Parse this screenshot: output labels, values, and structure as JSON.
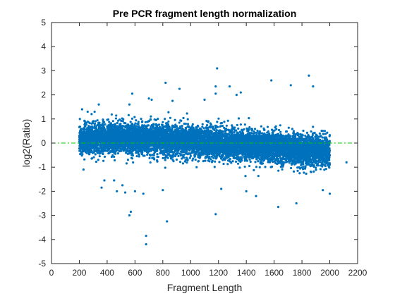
{
  "chart_data": {
    "type": "scatter",
    "title": "Pre PCR fragment length normalization",
    "xlabel": "Fragment Length",
    "ylabel": "log2(Ratio)",
    "xlim": [
      0,
      2200
    ],
    "ylim": [
      -5,
      5
    ],
    "xticks": [
      0,
      200,
      400,
      600,
      800,
      1000,
      1200,
      1400,
      1600,
      1800,
      2000,
      2200
    ],
    "yticks": [
      -5,
      -4,
      -3,
      -2,
      -1,
      0,
      1,
      2,
      3,
      4,
      5
    ],
    "grid": false,
    "box": true,
    "reference_line": {
      "y": 0,
      "style": "dash-dot",
      "color": "#00cc00"
    },
    "marker_color": "#0072BD",
    "cloud": {
      "x_range": [
        200,
        2000
      ],
      "center_trend": [
        [
          200,
          0.15
        ],
        [
          500,
          0.2
        ],
        [
          800,
          0.15
        ],
        [
          1100,
          0.05
        ],
        [
          1400,
          -0.1
        ],
        [
          1700,
          -0.25
        ],
        [
          2000,
          -0.35
        ]
      ],
      "spread": 0.55,
      "point_count": 9000
    },
    "outliers": [
      [
        220,
        1.4
      ],
      [
        230,
        -1.1
      ],
      [
        260,
        1.3
      ],
      [
        310,
        1.3
      ],
      [
        340,
        1.6
      ],
      [
        360,
        -1.85
      ],
      [
        380,
        -1.55
      ],
      [
        450,
        -1.55
      ],
      [
        470,
        -2.0
      ],
      [
        510,
        -1.75
      ],
      [
        530,
        -2.05
      ],
      [
        560,
        1.6
      ],
      [
        580,
        2.05
      ],
      [
        560,
        -3.0
      ],
      [
        570,
        -2.85
      ],
      [
        600,
        -2.0
      ],
      [
        660,
        -2.1
      ],
      [
        680,
        -3.85
      ],
      [
        680,
        -4.2
      ],
      [
        700,
        1.85
      ],
      [
        720,
        1.8
      ],
      [
        800,
        -1.95
      ],
      [
        820,
        2.5
      ],
      [
        830,
        -3.25
      ],
      [
        870,
        1.75
      ],
      [
        920,
        2.25
      ],
      [
        1100,
        1.8
      ],
      [
        1180,
        2.35
      ],
      [
        1180,
        2.05
      ],
      [
        1190,
        3.1
      ],
      [
        1180,
        -2.95
      ],
      [
        1220,
        -1.9
      ],
      [
        1280,
        2.35
      ],
      [
        1330,
        2.0
      ],
      [
        1360,
        2.1
      ],
      [
        1400,
        -2.0
      ],
      [
        1470,
        -2.2
      ],
      [
        1580,
        2.6
      ],
      [
        1630,
        -2.65
      ],
      [
        1720,
        2.4
      ],
      [
        1760,
        -2.5
      ],
      [
        1850,
        2.8
      ],
      [
        1880,
        2.35
      ],
      [
        1950,
        -1.95
      ],
      [
        2000,
        -2.1
      ],
      [
        2120,
        -0.8
      ]
    ]
  }
}
